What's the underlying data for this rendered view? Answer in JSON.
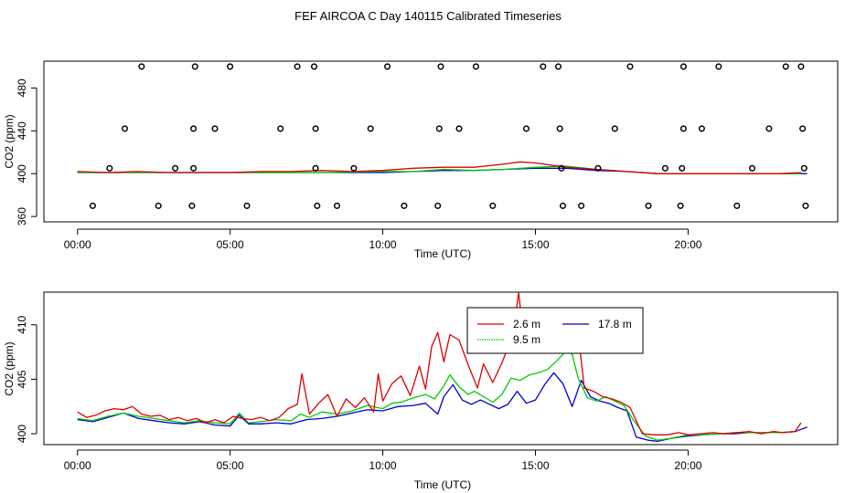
{
  "figure_title": "FEF AIRCOA C  Day 140115  Calibrated Timeseries",
  "colors": {
    "s2_6": "#dd0000",
    "s9_5": "#00cc00",
    "s17_8": "#0000cc",
    "axis": "#000000"
  },
  "chart_data": [
    {
      "type": "scatter+line",
      "title": "",
      "xlabel": "Time (UTC)",
      "ylabel": "CO2 (ppm)",
      "xlim": [
        -1.1,
        24.9
      ],
      "ylim": [
        355,
        505
      ],
      "x_ticks": [
        0,
        5,
        10,
        15,
        20
      ],
      "x_tick_labels": [
        "00:00",
        "05:00",
        "10:00",
        "15:00",
        "20:00"
      ],
      "y_ticks": [
        360,
        400,
        440,
        480
      ],
      "y_tick_labels": [
        "360",
        "400",
        "440",
        "480"
      ],
      "calibration_points": [
        {
          "x": 0.5,
          "y": 370
        },
        {
          "x": 1.05,
          "y": 405
        },
        {
          "x": 1.55,
          "y": 442
        },
        {
          "x": 2.1,
          "y": 500
        },
        {
          "x": 2.65,
          "y": 370
        },
        {
          "x": 3.2,
          "y": 405
        },
        {
          "x": 3.75,
          "y": 370
        },
        {
          "x": 3.8,
          "y": 405
        },
        {
          "x": 3.8,
          "y": 442
        },
        {
          "x": 3.85,
          "y": 500
        },
        {
          "x": 4.5,
          "y": 442
        },
        {
          "x": 5.0,
          "y": 500
        },
        {
          "x": 5.55,
          "y": 370
        },
        {
          "x": 6.65,
          "y": 442
        },
        {
          "x": 7.2,
          "y": 500
        },
        {
          "x": 7.75,
          "y": 500
        },
        {
          "x": 7.8,
          "y": 442
        },
        {
          "x": 7.8,
          "y": 405
        },
        {
          "x": 7.85,
          "y": 370
        },
        {
          "x": 8.5,
          "y": 370
        },
        {
          "x": 9.05,
          "y": 405
        },
        {
          "x": 9.6,
          "y": 442
        },
        {
          "x": 10.15,
          "y": 500
        },
        {
          "x": 10.7,
          "y": 370
        },
        {
          "x": 11.8,
          "y": 370
        },
        {
          "x": 11.85,
          "y": 442
        },
        {
          "x": 11.9,
          "y": 500
        },
        {
          "x": 12.5,
          "y": 442
        },
        {
          "x": 13.05,
          "y": 500
        },
        {
          "x": 13.6,
          "y": 370
        },
        {
          "x": 14.7,
          "y": 442
        },
        {
          "x": 15.25,
          "y": 500
        },
        {
          "x": 15.75,
          "y": 500
        },
        {
          "x": 15.8,
          "y": 442
        },
        {
          "x": 15.85,
          "y": 405
        },
        {
          "x": 15.9,
          "y": 370
        },
        {
          "x": 16.5,
          "y": 370
        },
        {
          "x": 17.05,
          "y": 405
        },
        {
          "x": 17.6,
          "y": 442
        },
        {
          "x": 18.1,
          "y": 500
        },
        {
          "x": 18.7,
          "y": 370
        },
        {
          "x": 19.25,
          "y": 405
        },
        {
          "x": 19.75,
          "y": 370
        },
        {
          "x": 19.8,
          "y": 405
        },
        {
          "x": 19.85,
          "y": 442
        },
        {
          "x": 19.85,
          "y": 500
        },
        {
          "x": 20.45,
          "y": 442
        },
        {
          "x": 21.0,
          "y": 500
        },
        {
          "x": 21.6,
          "y": 370
        },
        {
          "x": 22.1,
          "y": 405
        },
        {
          "x": 22.65,
          "y": 442
        },
        {
          "x": 23.2,
          "y": 500
        },
        {
          "x": 23.7,
          "y": 500
        },
        {
          "x": 23.75,
          "y": 442
        },
        {
          "x": 23.8,
          "y": 405
        },
        {
          "x": 23.85,
          "y": 370
        }
      ],
      "series": [
        {
          "name": "2.6 m",
          "x": [
            0,
            1,
            2,
            3,
            4,
            5,
            6,
            7,
            8,
            9,
            10,
            11,
            12,
            13,
            14,
            14.5,
            15,
            15.5,
            16,
            17,
            18,
            19,
            20,
            21,
            22,
            23,
            23.7
          ],
          "values": [
            402,
            401,
            402,
            401,
            401,
            401,
            402,
            402,
            403,
            402,
            403,
            405,
            406,
            406,
            409,
            411,
            410,
            408,
            406,
            404,
            402,
            400,
            400,
            400,
            400,
            400,
            401
          ]
        },
        {
          "name": "9.5 m",
          "x": [
            0,
            2,
            4,
            6,
            8,
            10,
            11,
            12,
            13,
            14,
            15,
            16,
            17,
            18,
            19,
            20,
            22,
            23.7
          ],
          "values": [
            401,
            401,
            401,
            401,
            401,
            402,
            402,
            404,
            403,
            404,
            406,
            407,
            404,
            402,
            400,
            400,
            400,
            400
          ]
        },
        {
          "name": "17.8 m",
          "x": [
            0,
            2,
            4,
            6,
            8,
            10,
            11,
            12,
            13,
            14,
            15,
            16,
            17,
            18,
            19,
            20,
            22,
            23.9
          ],
          "values": [
            401,
            401,
            401,
            401,
            401,
            401,
            402,
            403,
            403,
            404,
            405,
            405,
            403,
            402,
            400,
            400,
            400,
            400
          ]
        }
      ]
    },
    {
      "type": "line",
      "title": "",
      "xlabel": "Time (UTC)",
      "ylabel": "CO2 (ppm)",
      "xlim": [
        -1.1,
        24.9
      ],
      "ylim": [
        399,
        413
      ],
      "x_ticks": [
        0,
        5,
        10,
        15,
        20
      ],
      "x_tick_labels": [
        "00:00",
        "05:00",
        "10:00",
        "15:00",
        "20:00"
      ],
      "y_ticks": [
        400,
        405,
        410
      ],
      "y_tick_labels": [
        "400",
        "405",
        "410"
      ],
      "legend": {
        "position": "top-center",
        "entries": [
          "2.6 m",
          "9.5 m",
          "17.8 m"
        ]
      },
      "series": [
        {
          "name": "2.6 m",
          "x": [
            0,
            0.3,
            0.6,
            0.9,
            1.2,
            1.5,
            1.8,
            2.1,
            2.4,
            2.7,
            3.0,
            3.3,
            3.6,
            3.9,
            4.2,
            4.5,
            4.8,
            5.1,
            5.4,
            5.7,
            6.0,
            6.3,
            6.6,
            6.9,
            7.2,
            7.35,
            7.6,
            7.9,
            8.2,
            8.5,
            8.8,
            9.1,
            9.4,
            9.7,
            9.85,
            10.0,
            10.3,
            10.6,
            10.9,
            11.2,
            11.4,
            11.6,
            11.8,
            12.0,
            12.2,
            12.5,
            12.8,
            13.1,
            13.3,
            13.6,
            13.9,
            14.1,
            14.35,
            14.45,
            14.6,
            14.8,
            15.0,
            15.2,
            15.4,
            15.6,
            15.8,
            16.1,
            16.4,
            16.6,
            16.9,
            17.2,
            17.5,
            17.8,
            18.1,
            18.5,
            18.9,
            19.3,
            19.7,
            20.0,
            20.4,
            20.8,
            21.2,
            21.6,
            22.0,
            22.4,
            22.8,
            23.1,
            23.5,
            23.7
          ],
          "values": [
            402.0,
            401.5,
            401.7,
            402.1,
            402.3,
            402.2,
            402.5,
            401.8,
            401.6,
            401.7,
            401.3,
            401.5,
            401.2,
            401.4,
            401.0,
            401.3,
            401.0,
            401.6,
            401.4,
            401.3,
            401.5,
            401.2,
            401.5,
            402.3,
            402.7,
            405.5,
            401.8,
            402.8,
            403.6,
            401.6,
            403.2,
            402.4,
            403.3,
            402.0,
            405.5,
            403.0,
            404.6,
            405.3,
            403.5,
            406.2,
            404.1,
            408.0,
            409.3,
            406.6,
            409.1,
            408.6,
            406.3,
            404.2,
            406.4,
            404.7,
            406.5,
            407.9,
            410.8,
            413.0,
            409.1,
            410.5,
            411.0,
            408.6,
            411.4,
            410.6,
            409.8,
            408.0,
            409.2,
            404.2,
            403.9,
            403.4,
            403.2,
            402.9,
            402.4,
            400.0,
            399.9,
            399.9,
            400.1,
            399.9,
            400.0,
            400.1,
            400.0,
            400.1,
            400.2,
            400.0,
            400.2,
            400.1,
            400.2,
            401.0
          ]
        },
        {
          "name": "9.5 m",
          "x": [
            0,
            0.5,
            1.0,
            1.5,
            2.0,
            2.5,
            3.0,
            3.5,
            4.0,
            4.5,
            5.0,
            5.3,
            5.6,
            6.0,
            6.5,
            7.0,
            7.3,
            7.6,
            8.0,
            8.5,
            9.0,
            9.5,
            10.0,
            10.3,
            10.6,
            11.0,
            11.4,
            11.7,
            12.0,
            12.2,
            12.5,
            12.8,
            13.0,
            13.3,
            13.6,
            13.9,
            14.2,
            14.5,
            14.8,
            15.1,
            15.4,
            15.7,
            16.0,
            16.2,
            16.4,
            16.7,
            17.0,
            17.3,
            17.6,
            17.9,
            18.2,
            18.6,
            19.0,
            19.5,
            20.0,
            20.5,
            21.0,
            21.5,
            22.0,
            22.5,
            23.0,
            23.5
          ],
          "values": [
            401.4,
            401.2,
            401.6,
            401.9,
            401.6,
            401.4,
            401.2,
            401.0,
            401.2,
            401.0,
            400.9,
            401.9,
            401.0,
            401.1,
            401.3,
            401.2,
            401.8,
            401.5,
            402.0,
            401.8,
            402.1,
            402.6,
            402.3,
            402.8,
            402.9,
            403.3,
            403.6,
            403.2,
            404.4,
            405.4,
            404.3,
            403.6,
            403.9,
            403.4,
            402.9,
            403.6,
            405.1,
            404.9,
            405.4,
            405.6,
            405.9,
            406.7,
            407.6,
            407.3,
            405.1,
            403.3,
            403.0,
            403.4,
            403.0,
            402.6,
            401.3,
            399.8,
            399.4,
            399.6,
            399.9,
            399.9,
            400.0,
            400.1,
            400.1,
            400.1,
            400.1,
            400.2
          ]
        },
        {
          "name": "17.8 m",
          "x": [
            0,
            0.5,
            1.0,
            1.5,
            2.0,
            2.5,
            3.0,
            3.5,
            4.0,
            4.5,
            5.0,
            5.3,
            5.6,
            6.0,
            6.5,
            7.0,
            7.5,
            8.0,
            8.5,
            9.0,
            9.5,
            10.0,
            10.5,
            11.0,
            11.4,
            11.8,
            12.0,
            12.3,
            12.6,
            12.9,
            13.2,
            13.5,
            13.8,
            14.1,
            14.4,
            14.7,
            15.0,
            15.3,
            15.6,
            15.9,
            16.2,
            16.5,
            16.8,
            17.1,
            17.4,
            17.7,
            18.0,
            18.3,
            18.7,
            19.0,
            19.5,
            20.0,
            20.5,
            21.0,
            21.5,
            22.0,
            22.5,
            23.0,
            23.5,
            23.9
          ],
          "values": [
            401.3,
            401.1,
            401.5,
            401.9,
            401.4,
            401.2,
            401.0,
            400.9,
            401.1,
            400.8,
            400.7,
            401.7,
            400.9,
            400.9,
            401.0,
            400.9,
            401.3,
            401.4,
            401.6,
            401.9,
            402.2,
            402.1,
            402.5,
            402.6,
            402.8,
            401.8,
            403.4,
            404.5,
            403.1,
            402.7,
            403.1,
            402.7,
            402.3,
            402.7,
            403.9,
            402.8,
            403.1,
            404.5,
            405.6,
            404.6,
            402.5,
            404.9,
            403.4,
            403.0,
            402.8,
            402.4,
            402.1,
            399.7,
            399.4,
            399.3,
            399.6,
            399.8,
            399.9,
            400.0,
            400.0,
            400.1,
            400.1,
            400.1,
            400.2,
            400.6
          ]
        }
      ]
    }
  ]
}
